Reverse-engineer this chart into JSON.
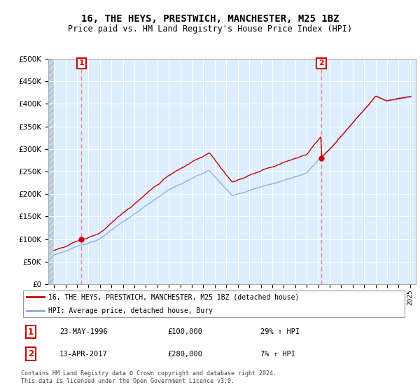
{
  "title": "16, THE HEYS, PRESTWICH, MANCHESTER, M25 1BZ",
  "subtitle": "Price paid vs. HM Land Registry's House Price Index (HPI)",
  "legend_line1": "16, THE HEYS, PRESTWICH, MANCHESTER, M25 1BZ (detached house)",
  "legend_line2": "HPI: Average price, detached house, Bury",
  "annotation1_date": "23-MAY-1996",
  "annotation1_price": "£100,000",
  "annotation1_hpi": "29% ↑ HPI",
  "annotation2_date": "13-APR-2017",
  "annotation2_price": "£280,000",
  "annotation2_hpi": "7% ↑ HPI",
  "footnote": "Contains HM Land Registry data © Crown copyright and database right 2024.\nThis data is licensed under the Open Government Licence v3.0.",
  "price_color": "#cc0000",
  "hpi_color": "#88aadd",
  "vline_color": "#ee8888",
  "plot_bg": "#ddeeff",
  "hatch_bg": "#c5d5e5",
  "ylim": [
    0,
    500000
  ],
  "yticks": [
    0,
    50000,
    100000,
    150000,
    200000,
    250000,
    300000,
    350000,
    400000,
    450000,
    500000
  ],
  "sale1_year": 1996.38,
  "sale1_price": 100000,
  "sale2_year": 2017.28,
  "sale2_price": 280000,
  "xmin": 1993.5,
  "xmax": 2025.5
}
